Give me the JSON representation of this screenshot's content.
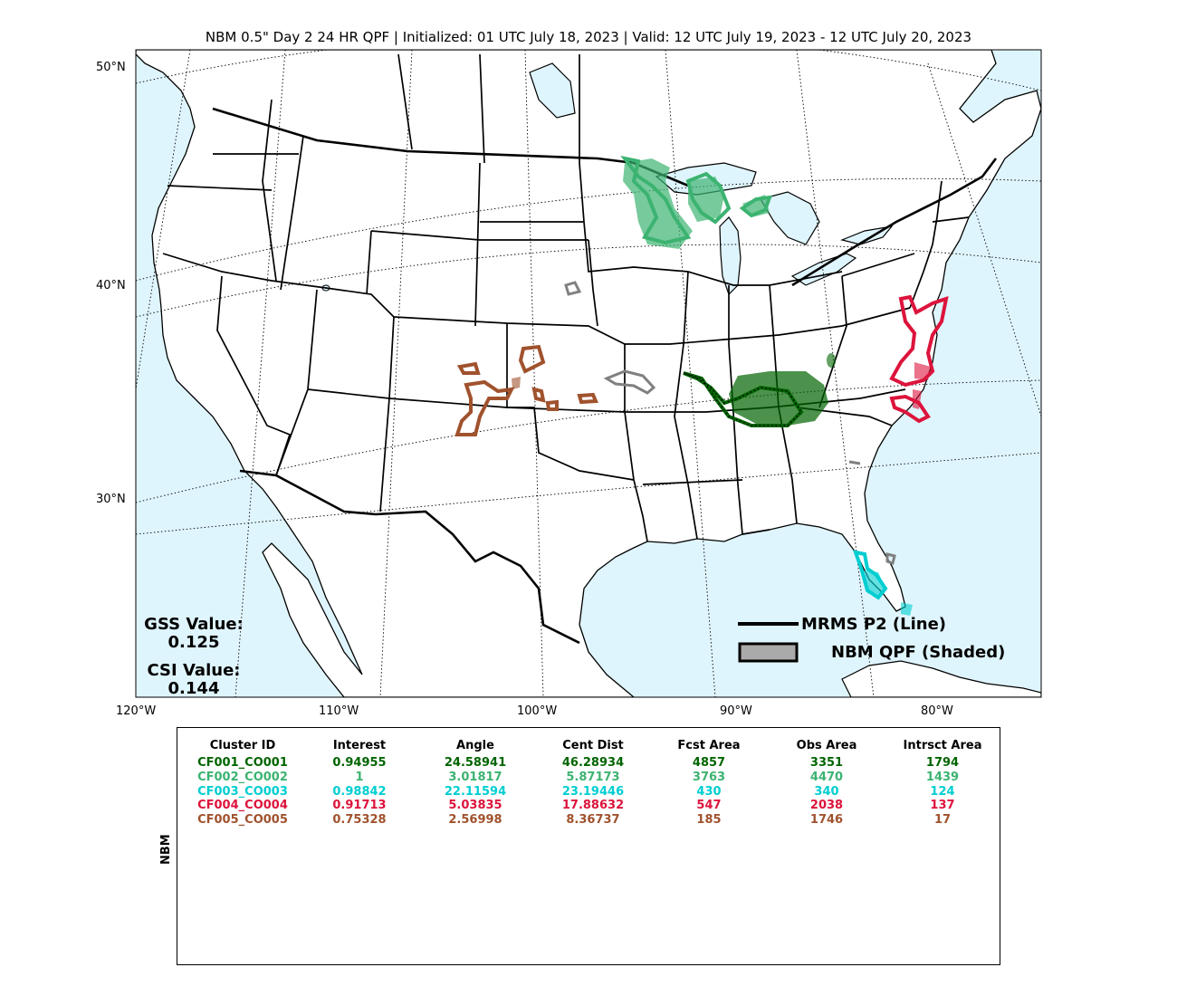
{
  "title": "NBM 0.5\" Day 2 24 HR QPF | Initialized: 01 UTC July 18, 2023 | Valid: 12 UTC July 19, 2023 - 12 UTC July 20, 2023",
  "lat_labels": [
    "50°N",
    "40°N",
    "30°N"
  ],
  "lon_labels": [
    "120°W",
    "110°W",
    "100°W",
    "90°W",
    "80°W"
  ],
  "stats": {
    "gss_label": "GSS Value:",
    "gss_value": "0.125",
    "csi_label": "CSI Value:",
    "csi_value": "0.144"
  },
  "legend": {
    "line_label": "MRMS P2 (Line)",
    "shaded_label": "NBM QPF (Shaded)"
  },
  "colors": {
    "land": "#ffffff",
    "water": "#dff5fd",
    "cluster1": "#006400",
    "cluster2": "#3cb371",
    "cluster3": "#00ced1",
    "cluster4": "#dc143c",
    "cluster5": "#a0522d",
    "unmatched": "#808080"
  },
  "table": {
    "side_label": "NBM",
    "headers": [
      "Cluster ID",
      "Interest",
      "Angle",
      "Cent Dist",
      "Fcst Area",
      "Obs Area",
      "Intrsct Area"
    ],
    "rows": [
      {
        "color": "#006400",
        "cells": [
          "CF001_CO001",
          "0.94955",
          "24.58941",
          "46.28934",
          "4857",
          "3351",
          "1794"
        ]
      },
      {
        "color": "#3cb371",
        "cells": [
          "CF002_CO002",
          "1",
          "3.01817",
          "5.87173",
          "3763",
          "4470",
          "1439"
        ]
      },
      {
        "color": "#00ced1",
        "cells": [
          "CF003_CO003",
          "0.98842",
          "22.11594",
          "23.19446",
          "430",
          "340",
          "124"
        ]
      },
      {
        "color": "#dc143c",
        "cells": [
          "CF004_CO004",
          "0.91713",
          "5.03835",
          "17.88632",
          "547",
          "2038",
          "137"
        ]
      },
      {
        "color": "#a0522d",
        "cells": [
          "CF005_CO005",
          "0.75328",
          "2.56998",
          "8.36737",
          "185",
          "1746",
          "17"
        ]
      }
    ]
  }
}
